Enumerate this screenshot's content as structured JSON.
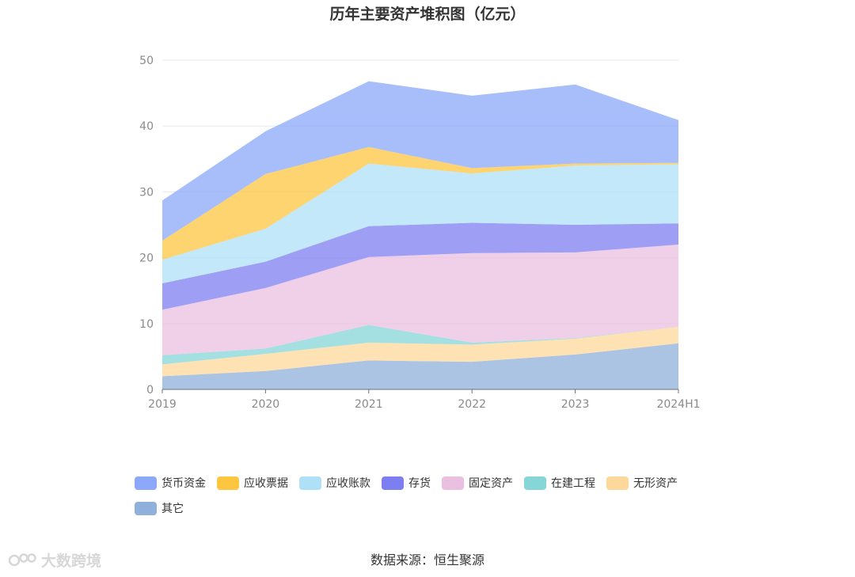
{
  "chart_data": {
    "type": "area",
    "stacked": true,
    "title": "历年主要资产堆积图（亿元）",
    "categories": [
      "2019",
      "2020",
      "2021",
      "2022",
      "2023",
      "2024H1"
    ],
    "ylim": [
      0,
      50
    ],
    "yticks": [
      0,
      10,
      20,
      30,
      40,
      50
    ],
    "grid": true,
    "legend_position": "bottom",
    "series": [
      {
        "name": "其它",
        "color": "#8fb0db",
        "values": [
          2.0,
          2.8,
          4.4,
          4.2,
          5.3,
          7.0
        ]
      },
      {
        "name": "无形资产",
        "color": "#fdd89a",
        "values": [
          1.8,
          2.6,
          2.7,
          2.6,
          2.4,
          2.5
        ]
      },
      {
        "name": "在建工程",
        "color": "#86d6d8",
        "values": [
          1.4,
          0.8,
          2.7,
          0.3,
          0.1,
          0.0
        ]
      },
      {
        "name": "固定资产",
        "color": "#ebbfe0",
        "values": [
          6.9,
          9.2,
          10.3,
          13.6,
          13.0,
          12.5
        ]
      },
      {
        "name": "存货",
        "color": "#7d7ef2",
        "values": [
          4.0,
          4.0,
          4.7,
          4.6,
          4.2,
          3.2
        ]
      },
      {
        "name": "应收账款",
        "color": "#aee0f8",
        "values": [
          3.6,
          5.0,
          9.5,
          7.5,
          9.0,
          9.0
        ]
      },
      {
        "name": "应收票据",
        "color": "#fcc63f",
        "values": [
          2.9,
          8.3,
          2.5,
          0.8,
          0.3,
          0.2
        ]
      },
      {
        "name": "货币资金",
        "color": "#8ba8fa",
        "values": [
          6.1,
          6.5,
          10.0,
          11.0,
          12.0,
          6.5
        ]
      }
    ]
  },
  "legend_order": [
    "货币资金",
    "应收票据",
    "应收账款",
    "存货",
    "固定资产",
    "在建工程",
    "无形资产",
    "其它"
  ],
  "source": "数据来源：恒生聚源",
  "watermark": "大数跨境"
}
